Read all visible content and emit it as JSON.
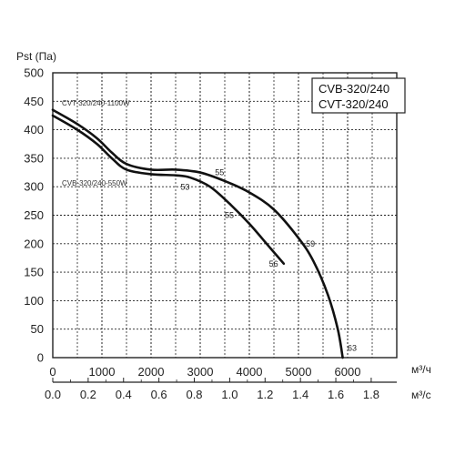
{
  "chart_data": {
    "type": "line",
    "title": "",
    "ylabel": "Pst (Па)",
    "xlabel_primary": "м³/ч",
    "xlabel_secondary": "м³/с",
    "xlim": [
      0,
      7000
    ],
    "ylim": [
      0,
      500
    ],
    "grid": true,
    "y_ticks": [
      "500",
      "450",
      "400",
      "350",
      "300",
      "250",
      "200",
      "150",
      "100",
      "50",
      "0"
    ],
    "x_ticks_primary": [
      "0",
      "1000",
      "2000",
      "3000",
      "4000",
      "5000",
      "6000"
    ],
    "x_ticks_secondary": [
      "0.0",
      "0.2",
      "0.4",
      "0.6",
      "0.8",
      "1.0",
      "1.2",
      "1.4",
      "1.6",
      "1.8"
    ],
    "legend": [
      "CVB-320/240",
      "CVT-320/240"
    ],
    "legend_position": "top-right",
    "series": [
      {
        "name": "CVT-320/240-1100W",
        "x": [
          0,
          500,
          900,
          1200,
          1500,
          2000,
          2500,
          3000,
          3500,
          4000,
          4500,
          5000,
          5300,
          5600,
          5800,
          5900
        ],
        "y": [
          435,
          410,
          385,
          360,
          340,
          330,
          330,
          325,
          310,
          290,
          260,
          210,
          170,
          110,
          50,
          0
        ]
      },
      {
        "name": "CVB-320/240-550W",
        "x": [
          0,
          500,
          900,
          1200,
          1500,
          2000,
          2500,
          2800,
          3200,
          3600,
          4000,
          4400,
          4700
        ],
        "y": [
          425,
          400,
          375,
          350,
          330,
          322,
          320,
          316,
          300,
          270,
          235,
          195,
          165
        ]
      }
    ],
    "annotations": [
      {
        "text": "55",
        "x": 3300,
        "y": 320
      },
      {
        "text": "53",
        "x": 2600,
        "y": 295
      },
      {
        "text": "55",
        "x": 3500,
        "y": 245
      },
      {
        "text": "59",
        "x": 5150,
        "y": 195
      },
      {
        "text": "56",
        "x": 4400,
        "y": 160
      },
      {
        "text": "63",
        "x": 6000,
        "y": 12
      }
    ]
  }
}
